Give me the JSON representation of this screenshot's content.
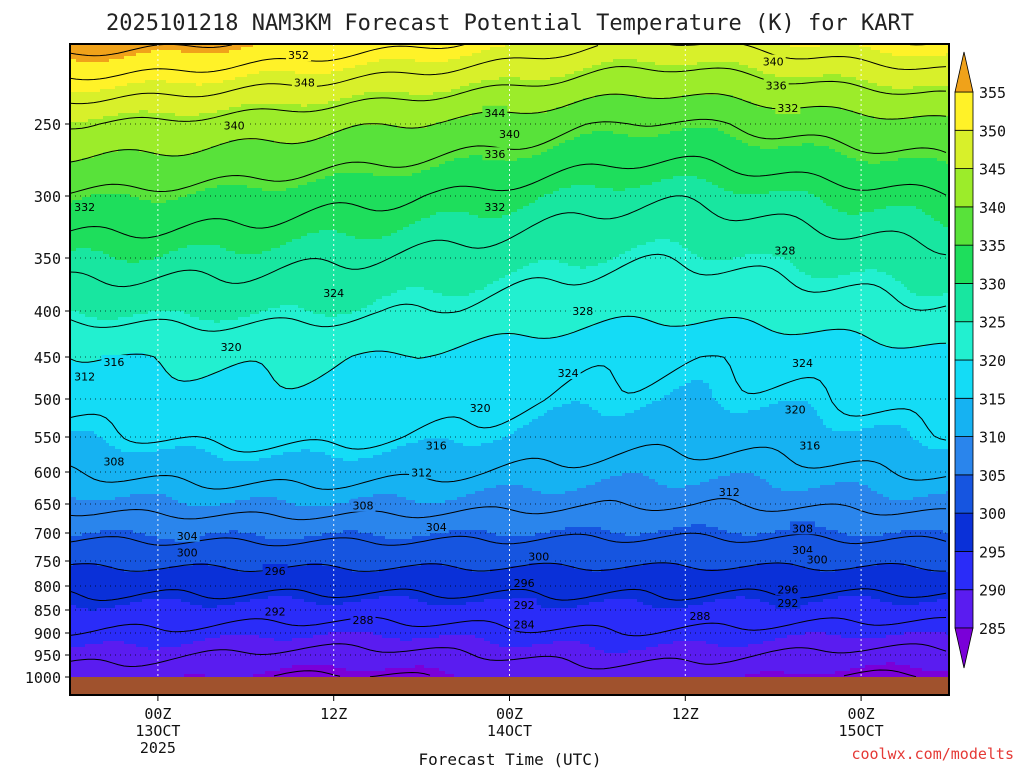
{
  "chart_data": {
    "type": "heatmap",
    "title": "2025101218 NAM3KM Forecast Potential Temperature (K) for KART",
    "xlabel": "Forecast Time (UTC)",
    "ylabel": "",
    "credit": "coolwx.com/modelts",
    "x_ticks": [
      {
        "hour": 6,
        "line1": "00Z",
        "line2": "13OCT",
        "line3": "2025"
      },
      {
        "hour": 18,
        "line1": "12Z",
        "line2": "",
        "line3": ""
      },
      {
        "hour": 30,
        "line1": "00Z",
        "line2": "14OCT",
        "line3": ""
      },
      {
        "hour": 42,
        "line1": "12Z",
        "line2": "",
        "line3": ""
      },
      {
        "hour": 54,
        "line1": "00Z",
        "line2": "15OCT",
        "line3": ""
      }
    ],
    "x_range_hours": [
      0,
      60
    ],
    "y_levels_hpa": [
      250,
      300,
      350,
      400,
      450,
      500,
      550,
      600,
      650,
      700,
      750,
      800,
      850,
      900,
      950,
      1000
    ],
    "y_range_hpa": [
      200,
      1000
    ],
    "colorbar": {
      "min": 285,
      "max": 355,
      "step": 5,
      "labels": [
        "355",
        "350",
        "345",
        "340",
        "335",
        "330",
        "325",
        "320",
        "315",
        "310",
        "305",
        "300",
        "295",
        "290",
        "285"
      ],
      "colors": [
        "#7a00d8",
        "#5a1cf0",
        "#2a2cf8",
        "#0a30d8",
        "#1655e0",
        "#2a85ec",
        "#16b2f2",
        "#14dcf6",
        "#22f0d0",
        "#18e6a0",
        "#1ede5c",
        "#58e23a",
        "#9cec2a",
        "#d8f02a",
        "#fff228",
        "#fdcc16",
        "#f0a21a"
      ]
    },
    "contour_interval_k": 4,
    "contour_labels": [
      {
        "value": "352",
        "hour": 15.6,
        "level": 207
      },
      {
        "value": "348",
        "hour": 16.0,
        "level": 224
      },
      {
        "value": "340",
        "hour": 48.0,
        "level": 211
      },
      {
        "value": "336",
        "hour": 48.2,
        "level": 226
      },
      {
        "value": "332",
        "hour": 49.0,
        "level": 240
      },
      {
        "value": "344",
        "hour": 29.0,
        "level": 243
      },
      {
        "value": "340",
        "hour": 11.2,
        "level": 251
      },
      {
        "value": "340",
        "hour": 30.0,
        "level": 257
      },
      {
        "value": "336",
        "hour": 29.0,
        "level": 271
      },
      {
        "value": "332",
        "hour": 1.0,
        "level": 309
      },
      {
        "value": "332",
        "hour": 29.0,
        "level": 309
      },
      {
        "value": "328",
        "hour": 48.8,
        "level": 344
      },
      {
        "value": "324",
        "hour": 18.0,
        "level": 383
      },
      {
        "value": "328",
        "hour": 35.0,
        "level": 400
      },
      {
        "value": "320",
        "hour": 11.0,
        "level": 439
      },
      {
        "value": "316",
        "hour": 3.0,
        "level": 456
      },
      {
        "value": "312",
        "hour": 1.0,
        "level": 473
      },
      {
        "value": "324",
        "hour": 34.0,
        "level": 469
      },
      {
        "value": "324",
        "hour": 50.0,
        "level": 457
      },
      {
        "value": "320",
        "hour": 28.0,
        "level": 512
      },
      {
        "value": "320",
        "hour": 49.5,
        "level": 514
      },
      {
        "value": "316",
        "hour": 25.0,
        "level": 562
      },
      {
        "value": "316",
        "hour": 50.5,
        "level": 562
      },
      {
        "value": "308",
        "hour": 3.0,
        "level": 585
      },
      {
        "value": "312",
        "hour": 24.0,
        "level": 601
      },
      {
        "value": "312",
        "hour": 45.0,
        "level": 631
      },
      {
        "value": "308",
        "hour": 20.0,
        "level": 653
      },
      {
        "value": "304",
        "hour": 25.0,
        "level": 690
      },
      {
        "value": "308",
        "hour": 50.0,
        "level": 692
      },
      {
        "value": "304",
        "hour": 8.0,
        "level": 705
      },
      {
        "value": "300",
        "hour": 8.0,
        "level": 735
      },
      {
        "value": "300",
        "hour": 32.0,
        "level": 742
      },
      {
        "value": "304",
        "hour": 50.0,
        "level": 730
      },
      {
        "value": "300",
        "hour": 51.0,
        "level": 747
      },
      {
        "value": "296",
        "hour": 14.0,
        "level": 770
      },
      {
        "value": "296",
        "hour": 31.0,
        "level": 794
      },
      {
        "value": "296",
        "hour": 49.0,
        "level": 807
      },
      {
        "value": "292",
        "hour": 14.0,
        "level": 853
      },
      {
        "value": "292",
        "hour": 31.0,
        "level": 840
      },
      {
        "value": "292",
        "hour": 49.0,
        "level": 835
      },
      {
        "value": "288",
        "hour": 20.0,
        "level": 872
      },
      {
        "value": "288",
        "hour": 43.0,
        "level": 863
      },
      {
        "value": "284",
        "hour": 31.0,
        "level": 882
      }
    ],
    "potential_temperature_profile": [
      {
        "level": 200,
        "theta": 354
      },
      {
        "level": 250,
        "theta": 341
      },
      {
        "level": 300,
        "theta": 333
      },
      {
        "level": 350,
        "theta": 328
      },
      {
        "level": 400,
        "theta": 324
      },
      {
        "level": 450,
        "theta": 319
      },
      {
        "level": 500,
        "theta": 317
      },
      {
        "level": 550,
        "theta": 315
      },
      {
        "level": 600,
        "theta": 312
      },
      {
        "level": 650,
        "theta": 309
      },
      {
        "level": 700,
        "theta": 305
      },
      {
        "level": 750,
        "theta": 301
      },
      {
        "level": 800,
        "theta": 297
      },
      {
        "level": 850,
        "theta": 294
      },
      {
        "level": 900,
        "theta": 291
      },
      {
        "level": 950,
        "theta": 288
      },
      {
        "level": 1000,
        "theta": 285
      }
    ]
  }
}
